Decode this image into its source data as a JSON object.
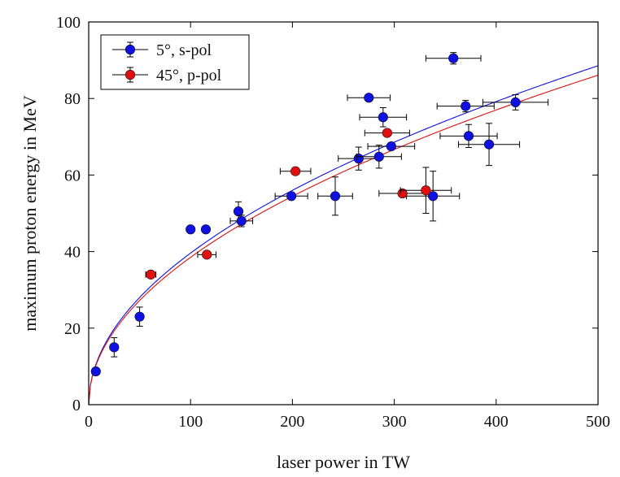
{
  "chart_data": {
    "type": "scatter",
    "xlabel": "laser power in TW",
    "ylabel": "maximum proton energy in MeV",
    "xlim": [
      0,
      500
    ],
    "ylim": [
      0,
      100
    ],
    "xticks": [
      "0",
      "100",
      "200",
      "300",
      "400",
      "500"
    ],
    "yticks": [
      "0",
      "20",
      "40",
      "60",
      "80",
      "100"
    ],
    "grid": false,
    "legend_position": "top-left",
    "series": [
      {
        "name": "5°, s-pol",
        "color": "#1010e0",
        "points": [
          {
            "x": 7,
            "y": 8.7,
            "xerr": 0,
            "yerr": 0
          },
          {
            "x": 25,
            "y": 15,
            "xerr": 0,
            "yerr": 2.5
          },
          {
            "x": 50,
            "y": 23,
            "xerr": 0,
            "yerr": 2.5
          },
          {
            "x": 100,
            "y": 45.8,
            "xerr": 0,
            "yerr": 0
          },
          {
            "x": 115,
            "y": 45.8,
            "xerr": 0,
            "yerr": 0
          },
          {
            "x": 147,
            "y": 50.5,
            "xerr": 0,
            "yerr": 2.5
          },
          {
            "x": 150,
            "y": 48,
            "xerr": 11,
            "yerr": 1.5
          },
          {
            "x": 199,
            "y": 54.5,
            "xerr": 16,
            "yerr": 0
          },
          {
            "x": 242,
            "y": 54.5,
            "xerr": 17,
            "yerr": 5
          },
          {
            "x": 265,
            "y": 64.3,
            "xerr": 20,
            "yerr": 3
          },
          {
            "x": 275,
            "y": 80.2,
            "xerr": 21,
            "yerr": 0
          },
          {
            "x": 285,
            "y": 64.8,
            "xerr": 22,
            "yerr": 3
          },
          {
            "x": 289,
            "y": 75.1,
            "xerr": 23,
            "yerr": 2.5
          },
          {
            "x": 297,
            "y": 67.5,
            "xerr": 23,
            "yerr": 0
          },
          {
            "x": 338,
            "y": 54.5,
            "xerr": 26,
            "yerr": 6.5
          },
          {
            "x": 358,
            "y": 90.5,
            "xerr": 27,
            "yerr": 1.5
          },
          {
            "x": 370,
            "y": 78,
            "xerr": 28,
            "yerr": 1.5
          },
          {
            "x": 373,
            "y": 70.2,
            "xerr": 28,
            "yerr": 3
          },
          {
            "x": 393,
            "y": 68,
            "xerr": 30,
            "yerr": 5.5
          },
          {
            "x": 419,
            "y": 79,
            "xerr": 32,
            "yerr": 2
          }
        ]
      },
      {
        "name": "45°, p-pol",
        "color": "#e01010",
        "points": [
          {
            "x": 61,
            "y": 34,
            "xerr": 5,
            "yerr": 0
          },
          {
            "x": 116,
            "y": 39.2,
            "xerr": 9,
            "yerr": 0
          },
          {
            "x": 203,
            "y": 61,
            "xerr": 15,
            "yerr": 0
          },
          {
            "x": 293,
            "y": 71,
            "xerr": 22,
            "yerr": 0
          },
          {
            "x": 308,
            "y": 55.2,
            "xerr": 23,
            "yerr": 0
          },
          {
            "x": 331,
            "y": 56,
            "xerr": 25,
            "yerr": 6
          }
        ]
      }
    ],
    "fit_curves": [
      {
        "color": "#1010e0",
        "coef": 3.96,
        "exponent": 0.5
      },
      {
        "color": "#e01010",
        "coef": 3.85,
        "exponent": 0.5
      }
    ]
  }
}
